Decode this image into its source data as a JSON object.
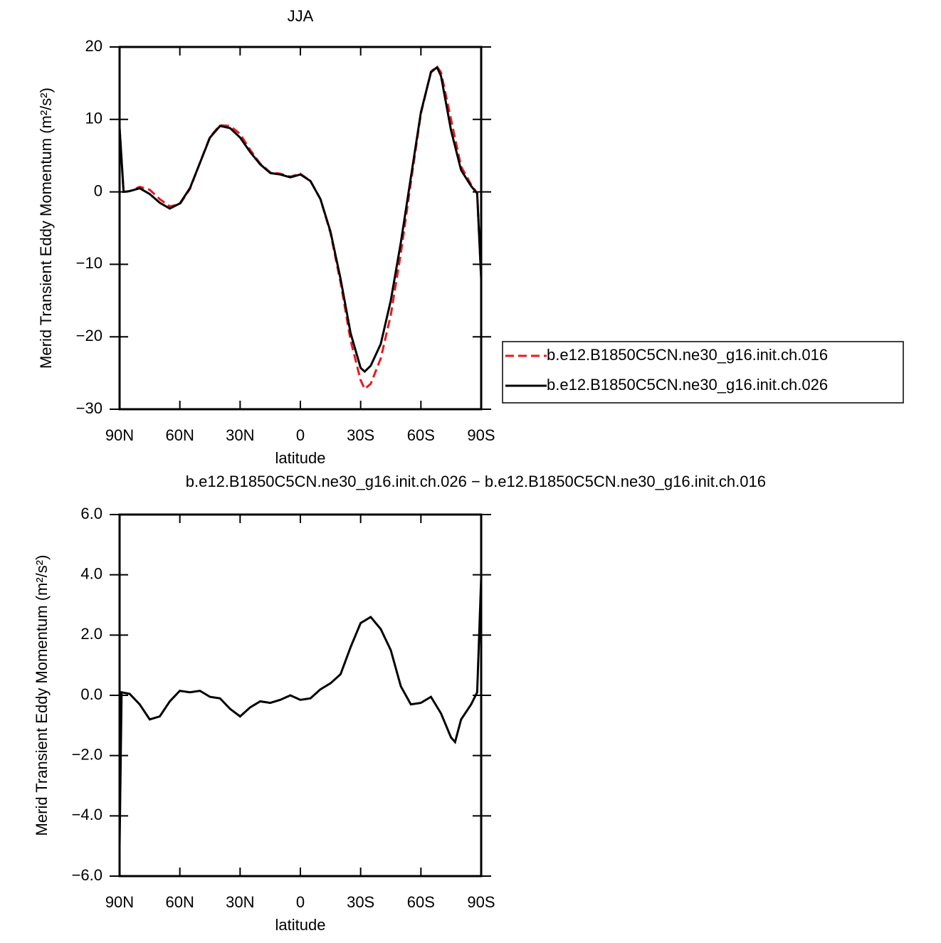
{
  "chart_data": [
    {
      "type": "line",
      "title": "JJA",
      "x_label": "latitude",
      "y_label": "Merid Transient Eddy Momentum (m²/s²)",
      "x": [
        90,
        88,
        85,
        80,
        75,
        70,
        65,
        60,
        55,
        50,
        45,
        40,
        35,
        30,
        25,
        20,
        15,
        10,
        5,
        0,
        -5,
        -10,
        -15,
        -20,
        -25,
        -30,
        -32,
        -35,
        -40,
        -45,
        -50,
        -55,
        -60,
        -65,
        -68,
        -70,
        -75,
        -80,
        -85,
        -88,
        -90
      ],
      "series": [
        {
          "name": "b.e12.B1850C5CN.ne30_g16.init.ch.016",
          "color": "#e8191c",
          "line_style": "dashed",
          "values": [
            8.8,
            0,
            0.1,
            0.7,
            0.3,
            -1.0,
            -2.0,
            -1.7,
            0.4,
            4,
            7.6,
            9.2,
            9.1,
            8.0,
            5.8,
            3.9,
            2.7,
            2.5,
            2.1,
            2.5,
            1.5,
            -1,
            -5.7,
            -12.5,
            -20.5,
            -26,
            -27.2,
            -26.5,
            -23,
            -17,
            -8.5,
            1.3,
            10.8,
            16.6,
            17.3,
            16.5,
            10,
            3.5,
            1.0,
            -0.2,
            -12
          ]
        },
        {
          "name": "b.e12.B1850C5CN.ne30_g16.init.ch.026",
          "color": "#000000",
          "line_style": "solid",
          "values": [
            8.8,
            0,
            0.1,
            0.5,
            -0.3,
            -1.5,
            -2.3,
            -1.6,
            0.5,
            4,
            7.5,
            9.1,
            8.8,
            7.5,
            5.5,
            3.8,
            2.6,
            2.4,
            2.0,
            2.4,
            1.5,
            -1,
            -5.5,
            -12,
            -19.5,
            -24.3,
            -24.8,
            -24,
            -21,
            -15,
            -7,
            2,
            11,
            16.5,
            17.2,
            16,
            8.5,
            3,
            0.8,
            -0.2,
            -12
          ]
        }
      ],
      "xlim": [
        90,
        -90
      ],
      "xticks": [
        {
          "value": 90,
          "label": "90N"
        },
        {
          "value": 60,
          "label": "60N"
        },
        {
          "value": 30,
          "label": "30N"
        },
        0,
        {
          "value": -30,
          "label": "30S"
        },
        {
          "value": -60,
          "label": "60S"
        },
        {
          "value": -90,
          "label": "90S"
        }
      ],
      "ylim": [
        -30,
        20
      ],
      "yticks": [
        20,
        10,
        0,
        {
          "value": -10,
          "label": "−10"
        },
        {
          "value": -20,
          "label": "−20"
        },
        {
          "value": -30,
          "label": "−30"
        }
      ],
      "legend": "right",
      "grid": false
    },
    {
      "type": "line",
      "title": "b.e12.B1850C5CN.ne30_g16.init.ch.026 − b.e12.B1850C5CN.ne30_g16.init.ch.016",
      "x_label": "latitude",
      "y_label": "Merid Transient Eddy Momentum (m²/s²)",
      "x": [
        90,
        89,
        85,
        80,
        75,
        70,
        65,
        60,
        55,
        50,
        45,
        40,
        35,
        30,
        25,
        20,
        15,
        10,
        5,
        0,
        -5,
        -10,
        -15,
        -20,
        -25,
        -30,
        -35,
        -40,
        -45,
        -50,
        -55,
        -60,
        -65,
        -70,
        -75,
        -77,
        -80,
        -85,
        -88,
        -90
      ],
      "values": [
        -5,
        0.1,
        0.05,
        -0.3,
        -0.8,
        -0.7,
        -0.2,
        0.15,
        0.1,
        0.15,
        -0.05,
        -0.1,
        -0.45,
        -0.7,
        -0.4,
        -0.2,
        -0.25,
        -0.15,
        0,
        -0.15,
        -0.1,
        0.2,
        0.4,
        0.7,
        1.6,
        2.4,
        2.6,
        2.2,
        1.5,
        0.3,
        -0.3,
        -0.25,
        -0.05,
        -0.6,
        -1.4,
        -1.55,
        -0.8,
        -0.3,
        0.1,
        3.9
      ],
      "color": "#000000",
      "xlim": [
        90,
        -90
      ],
      "xticks": [
        {
          "value": 90,
          "label": "90N"
        },
        {
          "value": 60,
          "label": "60N"
        },
        {
          "value": 30,
          "label": "30N"
        },
        0,
        {
          "value": -30,
          "label": "30S"
        },
        {
          "value": -60,
          "label": "60S"
        },
        {
          "value": -90,
          "label": "90S"
        }
      ],
      "ylim": [
        -6,
        6
      ],
      "yticks": [
        {
          "value": 6,
          "label": "6.0"
        },
        {
          "value": 4,
          "label": "4.0"
        },
        {
          "value": 2,
          "label": "2.0"
        },
        {
          "value": 0,
          "label": "0.0"
        },
        {
          "value": -2,
          "label": "−2.0"
        },
        {
          "value": -4,
          "label": "−4.0"
        },
        {
          "value": -6,
          "label": "−6.0"
        }
      ],
      "grid": false
    }
  ]
}
